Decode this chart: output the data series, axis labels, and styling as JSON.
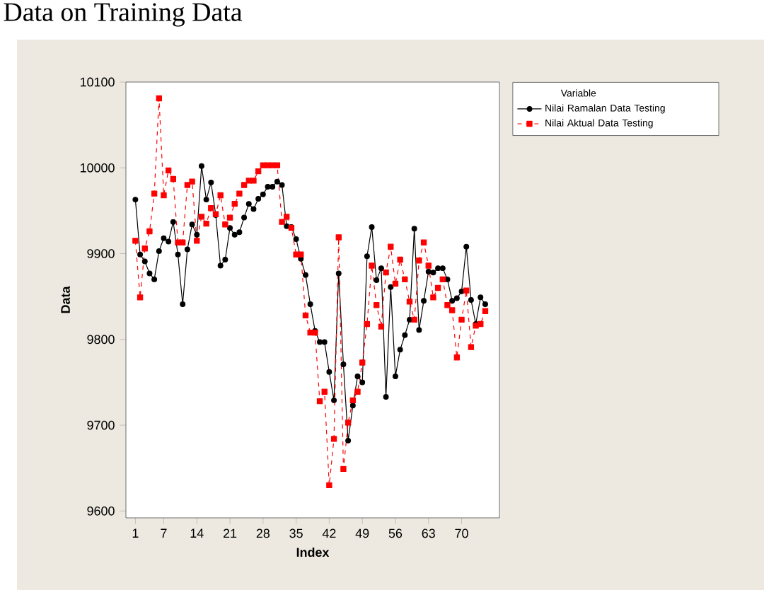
{
  "chart_data": {
    "type": "line",
    "title": "Data on Training Data",
    "xlabel": "Index",
    "ylabel": "Data",
    "legend_title": "Variable",
    "legend": "right",
    "x": [
      1,
      2,
      3,
      4,
      5,
      6,
      7,
      8,
      9,
      10,
      11,
      12,
      13,
      14,
      15,
      16,
      17,
      18,
      19,
      20,
      21,
      22,
      23,
      24,
      25,
      26,
      27,
      28,
      29,
      30,
      31,
      32,
      33,
      34,
      35,
      36,
      37,
      38,
      39,
      40,
      41,
      42,
      43,
      44,
      45,
      46,
      47,
      48,
      49,
      50,
      51,
      52,
      53,
      54,
      55,
      56,
      57,
      58,
      59,
      60,
      61,
      62,
      63,
      64,
      65,
      66,
      67,
      68,
      69,
      70,
      71,
      72,
      73,
      74,
      75
    ],
    "xlim": [
      -1,
      78
    ],
    "ylim": [
      9592,
      10100
    ],
    "xticks": [
      1,
      7,
      14,
      21,
      28,
      35,
      42,
      49,
      56,
      63,
      70
    ],
    "yticks": [
      9600,
      9700,
      9800,
      9900,
      10000,
      10100
    ],
    "series": [
      {
        "name": "Nilai Ramalan Data Testing",
        "color": "#000000",
        "marker": "circle",
        "line_style": "solid",
        "values": [
          9963,
          9899,
          9891,
          9877,
          9870,
          9903,
          9918,
          9914,
          9937,
          9899,
          9841,
          9905,
          9934,
          9922,
          10002,
          9963,
          9983,
          9945,
          9886,
          9893,
          9930,
          9922,
          9925,
          9942,
          9958,
          9952,
          9964,
          9969,
          9978,
          9978,
          9984,
          9980,
          9932,
          9931,
          9917,
          9894,
          9875,
          9841,
          9810,
          9797,
          9797,
          9762,
          9729,
          9877,
          9771,
          9682,
          9723,
          9757,
          9750,
          9897,
          9931,
          9869,
          9883,
          9733,
          9861,
          9757,
          9788,
          9805,
          9823,
          9929,
          9811,
          9845,
          9879,
          9878,
          9883,
          9883,
          9870,
          9845,
          9848,
          9856,
          9908,
          9846,
          9818,
          9849,
          9841
        ]
      },
      {
        "name": "Nilai Aktual Data Testing",
        "color": "#ff0000",
        "marker": "square",
        "line_style": "dashed",
        "values": [
          9915,
          9849,
          9906,
          9926,
          9970,
          10081,
          9968,
          9997,
          9987,
          9913,
          9913,
          9980,
          9984,
          9915,
          9943,
          9935,
          9953,
          9946,
          9968,
          9934,
          9942,
          9958,
          9970,
          9980,
          9985,
          9985,
          9996,
          10003,
          10003,
          10003,
          10003,
          9937,
          9943,
          9930,
          9899,
          9899,
          9828,
          9808,
          9808,
          9728,
          9739,
          9630,
          9684,
          9919,
          9649,
          9703,
          9729,
          9739,
          9773,
          9818,
          9886,
          9840,
          9815,
          9878,
          9908,
          9865,
          9893,
          9870,
          9844,
          9823,
          9892,
          9913,
          9886,
          9849,
          9860,
          9870,
          9840,
          9834,
          9779,
          9823,
          9857,
          9791,
          9816,
          9818,
          9833
        ]
      }
    ]
  }
}
